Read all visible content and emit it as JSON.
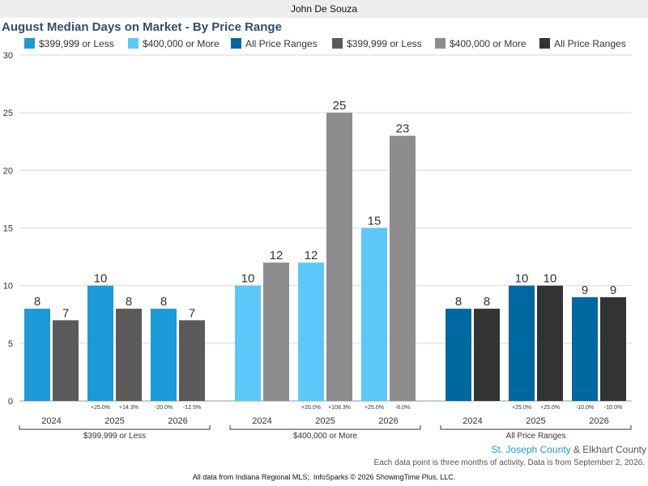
{
  "header": {
    "agent_name": "John De Souza"
  },
  "chart_data": {
    "type": "bar",
    "title": "August Median Days on Market - By Price Range",
    "ylim": [
      0,
      30
    ],
    "yticks": [
      0,
      5,
      10,
      15,
      20,
      25,
      30
    ],
    "grid": true,
    "legend_position": "top",
    "legend": [
      {
        "name": "$399,999 or Less",
        "color": "#1a9ad6"
      },
      {
        "name": "$400,000 or More",
        "color": "#5bc8f9"
      },
      {
        "name": "All Price Ranges",
        "color": "#0068a0"
      },
      {
        "name": "$399,999 or Less",
        "color": "#5a5a5a"
      },
      {
        "name": "$400,000 or More",
        "color": "#8d8d8d"
      },
      {
        "name": "All Price Ranges",
        "color": "#333333"
      }
    ],
    "groups": [
      {
        "label": "$399,999 or Less",
        "years": [
          {
            "year": "2024",
            "values": [
              8,
              7
            ],
            "changes": [
              "",
              ""
            ]
          },
          {
            "year": "2025",
            "values": [
              10,
              8
            ],
            "changes": [
              "+25.0%",
              "+14.3%"
            ]
          },
          {
            "year": "2026",
            "values": [
              8,
              7
            ],
            "changes": [
              "-20.0%",
              "-12.5%"
            ]
          }
        ],
        "colors": [
          "#1a9ad6",
          "#5a5a5a"
        ]
      },
      {
        "label": "$400,000 or More",
        "years": [
          {
            "year": "2024",
            "values": [
              10,
              12
            ],
            "changes": [
              "",
              ""
            ]
          },
          {
            "year": "2025",
            "values": [
              12,
              25
            ],
            "changes": [
              "+20.0%",
              "+108.3%"
            ]
          },
          {
            "year": "2026",
            "values": [
              15,
              23
            ],
            "changes": [
              "+25.0%",
              "-8.0%"
            ]
          }
        ],
        "colors": [
          "#5bc8f9",
          "#8d8d8d"
        ]
      },
      {
        "label": "All Price Ranges",
        "years": [
          {
            "year": "2024",
            "values": [
              8,
              8
            ],
            "changes": [
              "",
              ""
            ]
          },
          {
            "year": "2025",
            "values": [
              10,
              10
            ],
            "changes": [
              "+25.0%",
              "+25.0%"
            ]
          },
          {
            "year": "2026",
            "values": [
              9,
              9
            ],
            "changes": [
              "-10.0%",
              "-10.0%"
            ]
          }
        ],
        "colors": [
          "#0068a0",
          "#333333"
        ]
      }
    ]
  },
  "footer": {
    "county_a": "St. Joseph County",
    "county_sep": "&",
    "county_b": "Elkhart County",
    "county_a_color": "#1a9ad6",
    "note": "Each data point is three months of activity. Data is from September 2, 2026.",
    "source": "All data from Indiana Regional MLS;. InfoSparks © 2026 ShowingTime Plus, LLC."
  }
}
